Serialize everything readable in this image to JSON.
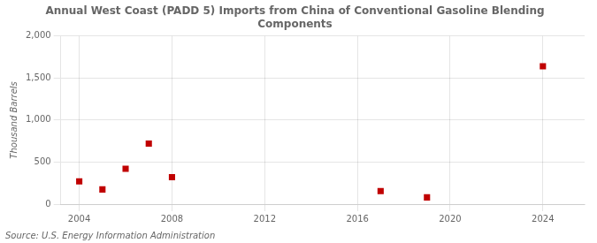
{
  "chart_data": {
    "type": "scatter",
    "title": "Annual West Coast (PADD 5) Imports from China of Conventional Gasoline Blending\nComponents",
    "ylabel": "Thousand Barrels",
    "source": "Source: U.S. Energy Information Administration",
    "x": [
      2004,
      2005,
      2006,
      2007,
      2008,
      2017,
      2019,
      2024
    ],
    "values": [
      270,
      175,
      420,
      720,
      320,
      155,
      80,
      1640
    ],
    "color": "#c00000",
    "marker": "square",
    "xlim": [
      2003.2,
      2025.8
    ],
    "ylim": [
      0,
      2000
    ],
    "xticks": [
      2004,
      2008,
      2012,
      2016,
      2020,
      2024
    ],
    "yticks": [
      0,
      500,
      {
        "value": 1000,
        "label": "1,000"
      },
      {
        "value": 1500,
        "label": "1,500"
      },
      {
        "value": 2000,
        "label": "2,000"
      }
    ],
    "grid": true
  }
}
